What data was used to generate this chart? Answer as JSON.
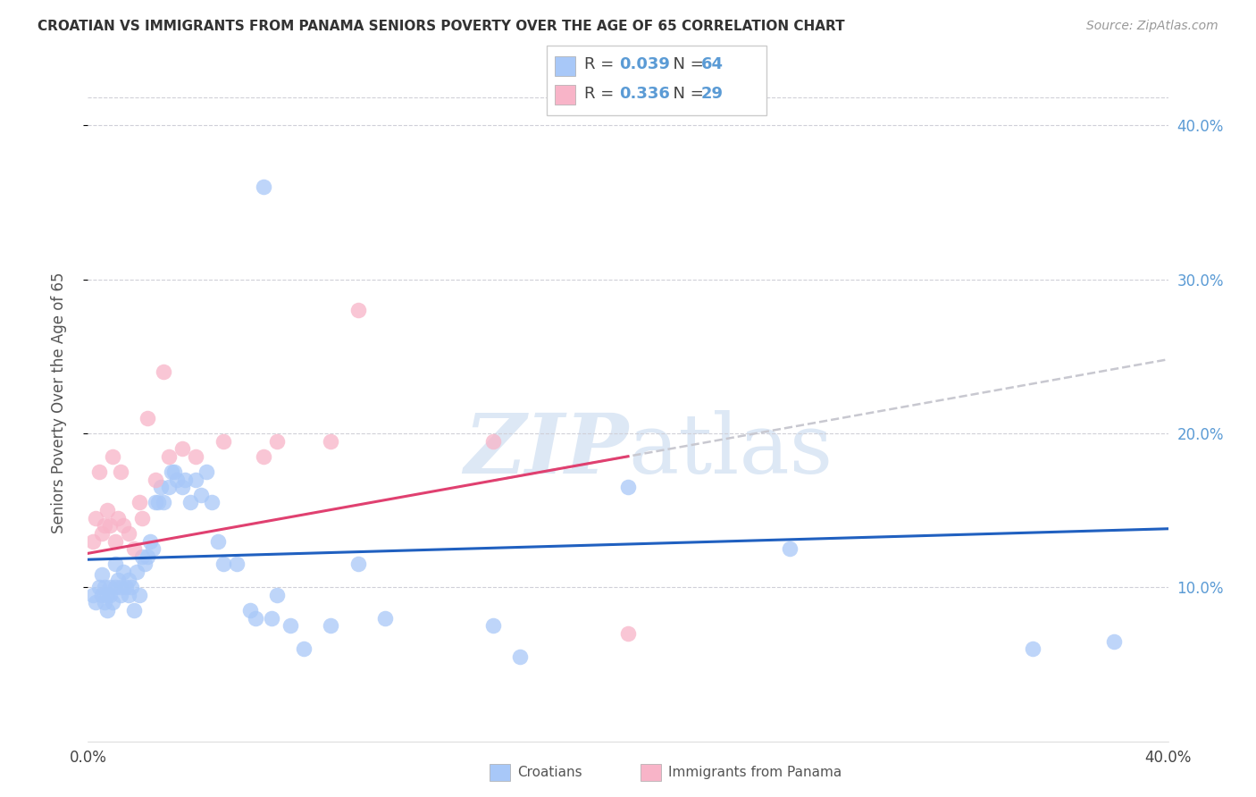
{
  "title": "CROATIAN VS IMMIGRANTS FROM PANAMA SENIORS POVERTY OVER THE AGE OF 65 CORRELATION CHART",
  "source": "Source: ZipAtlas.com",
  "ylabel": "Seniors Poverty Over the Age of 65",
  "xlim": [
    0.0,
    0.4
  ],
  "ylim": [
    0.0,
    0.44
  ],
  "yticks_right": [
    0.1,
    0.2,
    0.3,
    0.4
  ],
  "ytick_labels_right": [
    "10.0%",
    "20.0%",
    "30.0%",
    "40.0%"
  ],
  "croatian_R": 0.039,
  "croatian_N": 64,
  "panama_R": 0.336,
  "panama_N": 29,
  "legend_label1": "Croatians",
  "legend_label2": "Immigrants from Panama",
  "croatian_color": "#a8c8f8",
  "panama_color": "#f8b4c8",
  "croatian_line_color": "#2060c0",
  "panama_line_color": "#e04070",
  "dash_color": "#c8c8d0",
  "watermark_color": "#dde8f5",
  "croatian_x": [
    0.002,
    0.003,
    0.004,
    0.005,
    0.005,
    0.006,
    0.006,
    0.007,
    0.007,
    0.008,
    0.008,
    0.009,
    0.01,
    0.01,
    0.011,
    0.012,
    0.012,
    0.013,
    0.014,
    0.015,
    0.015,
    0.016,
    0.017,
    0.018,
    0.019,
    0.02,
    0.021,
    0.022,
    0.023,
    0.024,
    0.025,
    0.026,
    0.027,
    0.028,
    0.03,
    0.031,
    0.032,
    0.033,
    0.035,
    0.036,
    0.038,
    0.04,
    0.042,
    0.044,
    0.046,
    0.048,
    0.05,
    0.055,
    0.06,
    0.062,
    0.065,
    0.068,
    0.07,
    0.075,
    0.08,
    0.09,
    0.1,
    0.11,
    0.15,
    0.16,
    0.2,
    0.26,
    0.35,
    0.38
  ],
  "croatian_y": [
    0.095,
    0.09,
    0.1,
    0.095,
    0.108,
    0.09,
    0.1,
    0.085,
    0.095,
    0.1,
    0.095,
    0.09,
    0.115,
    0.1,
    0.105,
    0.095,
    0.1,
    0.11,
    0.1,
    0.095,
    0.105,
    0.1,
    0.085,
    0.11,
    0.095,
    0.12,
    0.115,
    0.12,
    0.13,
    0.125,
    0.155,
    0.155,
    0.165,
    0.155,
    0.165,
    0.175,
    0.175,
    0.17,
    0.165,
    0.17,
    0.155,
    0.17,
    0.16,
    0.175,
    0.155,
    0.13,
    0.115,
    0.115,
    0.085,
    0.08,
    0.36,
    0.08,
    0.095,
    0.075,
    0.06,
    0.075,
    0.115,
    0.08,
    0.075,
    0.055,
    0.165,
    0.125,
    0.06,
    0.065
  ],
  "panama_x": [
    0.002,
    0.003,
    0.004,
    0.005,
    0.006,
    0.007,
    0.008,
    0.009,
    0.01,
    0.011,
    0.012,
    0.013,
    0.015,
    0.017,
    0.019,
    0.02,
    0.022,
    0.025,
    0.028,
    0.03,
    0.035,
    0.04,
    0.05,
    0.065,
    0.07,
    0.09,
    0.1,
    0.15,
    0.2
  ],
  "panama_y": [
    0.13,
    0.145,
    0.175,
    0.135,
    0.14,
    0.15,
    0.14,
    0.185,
    0.13,
    0.145,
    0.175,
    0.14,
    0.135,
    0.125,
    0.155,
    0.145,
    0.21,
    0.17,
    0.24,
    0.185,
    0.19,
    0.185,
    0.195,
    0.185,
    0.195,
    0.195,
    0.28,
    0.195,
    0.07
  ],
  "cr_line_x0": 0.0,
  "cr_line_y0": 0.118,
  "cr_line_x1": 0.4,
  "cr_line_y1": 0.138,
  "pa_line_x0": 0.0,
  "pa_line_y0": 0.122,
  "pa_line_x1": 0.4,
  "pa_line_y1": 0.248
}
